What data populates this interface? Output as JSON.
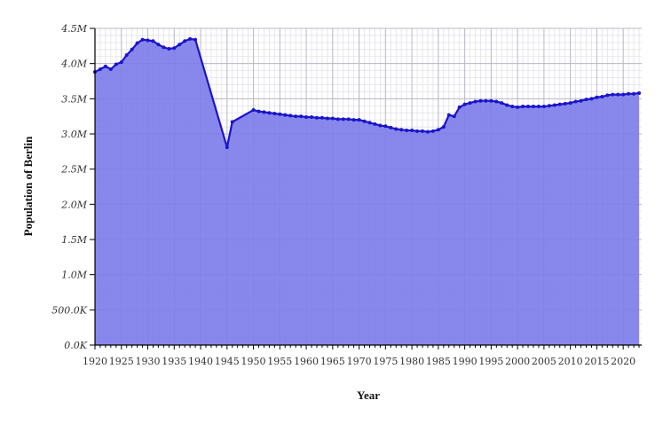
{
  "chart_data": {
    "type": "area",
    "title": "",
    "xlabel": "Year",
    "ylabel": "Population of Berlin",
    "xlim": [
      1920,
      2023.5
    ],
    "ylim": [
      0,
      4500000
    ],
    "grid": true,
    "colors": {
      "fill": "#7b7bea",
      "line": "#1a14cc",
      "grid_major": "#b9b9c8",
      "grid_minor": "#e2e2e8"
    },
    "x_ticks": [
      1920,
      1925,
      1930,
      1935,
      1940,
      1945,
      1950,
      1955,
      1960,
      1965,
      1970,
      1975,
      1980,
      1985,
      1990,
      1995,
      2000,
      2005,
      2010,
      2015,
      2020
    ],
    "x_tick_labels": [
      "1920",
      "1925",
      "1930",
      "1935",
      "1940",
      "1945",
      "1950",
      "1955",
      "1960",
      "1965",
      "1970",
      "1975",
      "1980",
      "1985",
      "1990",
      "1995",
      "2000",
      "2005",
      "2010",
      "2015",
      "2020"
    ],
    "y_ticks": [
      0,
      500000,
      1000000,
      1500000,
      2000000,
      2500000,
      3000000,
      3500000,
      4000000,
      4500000
    ],
    "y_tick_labels": [
      "0.0K",
      "500.0K",
      "1.0M",
      "1.5M",
      "2.0M",
      "2.5M",
      "3.0M",
      "3.5M",
      "4.0M",
      "4.5M"
    ],
    "x": [
      1920,
      1921,
      1922,
      1923,
      1924,
      1925,
      1926,
      1927,
      1928,
      1929,
      1930,
      1931,
      1932,
      1933,
      1934,
      1935,
      1936,
      1937,
      1938,
      1939,
      1945,
      1946,
      1950,
      1951,
      1952,
      1953,
      1954,
      1955,
      1956,
      1957,
      1958,
      1959,
      1960,
      1961,
      1962,
      1963,
      1964,
      1965,
      1966,
      1967,
      1968,
      1969,
      1970,
      1971,
      1972,
      1973,
      1974,
      1975,
      1976,
      1977,
      1978,
      1979,
      1980,
      1981,
      1982,
      1983,
      1984,
      1985,
      1986,
      1987,
      1988,
      1989,
      1990,
      1991,
      1992,
      1993,
      1994,
      1995,
      1996,
      1997,
      1998,
      1999,
      2000,
      2001,
      2002,
      2003,
      2004,
      2005,
      2006,
      2007,
      2008,
      2009,
      2010,
      2011,
      2012,
      2013,
      2014,
      2015,
      2016,
      2017,
      2018,
      2019,
      2020,
      2021,
      2022,
      2023
    ],
    "y": [
      3880000,
      3920000,
      3960000,
      3920000,
      3990000,
      4020000,
      4120000,
      4200000,
      4290000,
      4340000,
      4330000,
      4320000,
      4270000,
      4230000,
      4210000,
      4220000,
      4270000,
      4320000,
      4350000,
      4340000,
      2810000,
      3170000,
      3340000,
      3320000,
      3310000,
      3300000,
      3290000,
      3280000,
      3270000,
      3260000,
      3250000,
      3250000,
      3240000,
      3240000,
      3230000,
      3230000,
      3220000,
      3220000,
      3210000,
      3210000,
      3210000,
      3200000,
      3200000,
      3180000,
      3160000,
      3140000,
      3120000,
      3110000,
      3090000,
      3070000,
      3060000,
      3050000,
      3050000,
      3040000,
      3040000,
      3030000,
      3040000,
      3060000,
      3100000,
      3270000,
      3250000,
      3380000,
      3420000,
      3440000,
      3460000,
      3470000,
      3470000,
      3470000,
      3460000,
      3440000,
      3410000,
      3390000,
      3380000,
      3390000,
      3390000,
      3390000,
      3390000,
      3390000,
      3400000,
      3410000,
      3420000,
      3430000,
      3440000,
      3460000,
      3470000,
      3490000,
      3500000,
      3520000,
      3530000,
      3550000,
      3560000,
      3560000,
      3560000,
      3570000,
      3570000,
      3580000
    ]
  }
}
